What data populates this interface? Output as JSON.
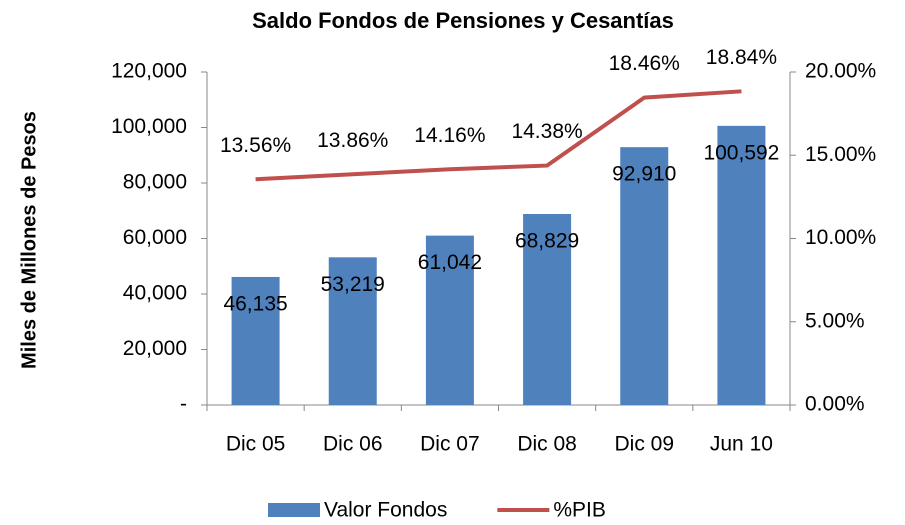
{
  "chart_data": {
    "type": "bar_line",
    "title": "Saldo Fondos de Pensiones y Cesantías",
    "ylabel": "Miles de Millones de Pesos",
    "categories": [
      "Dic 05",
      "Dic 06",
      "Dic 07",
      "Dic 08",
      "Dic 09",
      "Jun 10"
    ],
    "series": [
      {
        "name": "Valor Fondos",
        "type": "bar",
        "color": "#4f81bd",
        "axis": "y",
        "values": [
          46135,
          53219,
          61042,
          68829,
          92910,
          100592
        ],
        "value_labels": [
          "46,135",
          "53,219",
          "61,042",
          "68,829",
          "92,910",
          "100,592"
        ]
      },
      {
        "name": "%PIB",
        "type": "line",
        "color": "#c0504d",
        "axis": "y2",
        "values": [
          13.56,
          13.86,
          14.16,
          14.38,
          18.46,
          18.84
        ],
        "value_labels": [
          "13.56%",
          "13.86%",
          "14.16%",
          "14.38%",
          "18.46%",
          "18.84%"
        ]
      }
    ],
    "ylim": [
      0,
      120000
    ],
    "yticks": [
      {
        "value": 0,
        "label": "-"
      },
      {
        "value": 20000,
        "label": "20,000"
      },
      {
        "value": 40000,
        "label": "40,000"
      },
      {
        "value": 60000,
        "label": "60,000"
      },
      {
        "value": 80000,
        "label": "80,000"
      },
      {
        "value": 100000,
        "label": "100,000"
      },
      {
        "value": 120000,
        "label": "120,000"
      }
    ],
    "y2lim": [
      0,
      20
    ],
    "y2ticks": [
      {
        "value": 0,
        "label": "0.00%"
      },
      {
        "value": 5,
        "label": "5.00%"
      },
      {
        "value": 10,
        "label": "10.00%"
      },
      {
        "value": 15,
        "label": "15.00%"
      },
      {
        "value": 20,
        "label": "20.00%"
      }
    ],
    "legend": "bottom"
  }
}
